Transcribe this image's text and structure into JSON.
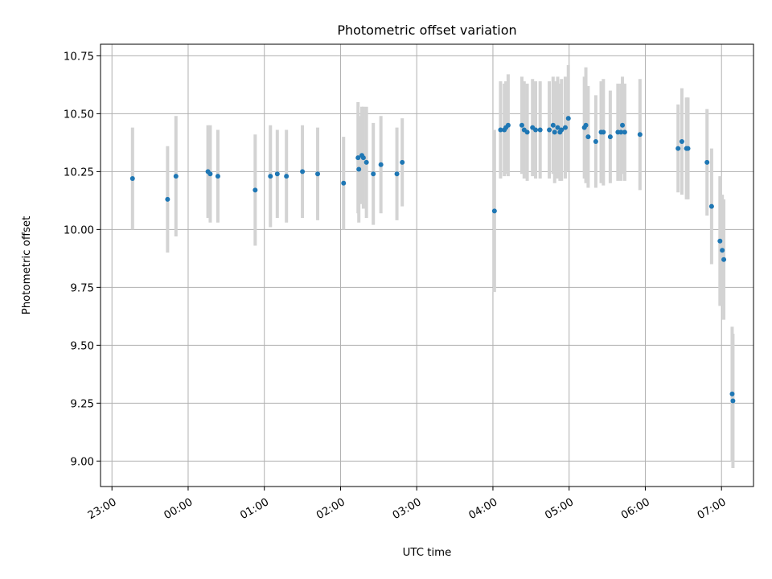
{
  "chart_data": {
    "type": "scatter",
    "title": "Photometric offset variation",
    "xlabel": "UTC time",
    "ylabel": "Photometric offset",
    "xlim": [
      -0.15,
      8.42
    ],
    "ylim": [
      8.89,
      10.8
    ],
    "x_ticks": [
      {
        "value": 0,
        "label": "23:00"
      },
      {
        "value": 1,
        "label": "00:00"
      },
      {
        "value": 2,
        "label": "01:00"
      },
      {
        "value": 3,
        "label": "02:00"
      },
      {
        "value": 4,
        "label": "03:00"
      },
      {
        "value": 5,
        "label": "04:00"
      },
      {
        "value": 6,
        "label": "05:00"
      },
      {
        "value": 7,
        "label": "06:00"
      },
      {
        "value": 8,
        "label": "07:00"
      }
    ],
    "y_ticks": [
      9.0,
      9.25,
      9.5,
      9.75,
      10.0,
      10.25,
      10.5,
      10.75
    ],
    "y_tick_labels": [
      "9.00",
      "9.25",
      "9.50",
      "9.75",
      "10.00",
      "10.25",
      "10.50",
      "10.75"
    ],
    "grid": true,
    "colors": {
      "point": "#1f77b4",
      "errorbar": "#d3d3d3",
      "grid": "#b0b0b0"
    },
    "series": [
      {
        "x": [
          0.27,
          0.73,
          0.84,
          1.26,
          1.29,
          1.39,
          1.88,
          2.08,
          2.17,
          2.29,
          2.5,
          2.7,
          3.04,
          3.23,
          3.24,
          3.28,
          3.3,
          3.34,
          3.43,
          3.53,
          3.74,
          3.81,
          5.02,
          5.1,
          5.15,
          5.17,
          5.2,
          5.38,
          5.41,
          5.45,
          5.52,
          5.56,
          5.62,
          5.74,
          5.79,
          5.81,
          5.85,
          5.88,
          5.9,
          5.95,
          5.99,
          6.2,
          6.22,
          6.25,
          6.35,
          6.42,
          6.45,
          6.54,
          6.64,
          6.68,
          6.7,
          6.73,
          6.93,
          7.43,
          7.48,
          7.54,
          7.56,
          7.81,
          7.87,
          7.98,
          8.01,
          8.03,
          8.14,
          8.15
        ],
        "y": [
          10.22,
          10.13,
          10.23,
          10.25,
          10.24,
          10.23,
          10.17,
          10.23,
          10.24,
          10.23,
          10.25,
          10.24,
          10.2,
          10.31,
          10.26,
          10.32,
          10.31,
          10.29,
          10.24,
          10.28,
          10.24,
          10.29,
          10.08,
          10.43,
          10.43,
          10.44,
          10.45,
          10.45,
          10.43,
          10.42,
          10.44,
          10.43,
          10.43,
          10.43,
          10.45,
          10.42,
          10.44,
          10.42,
          10.43,
          10.44,
          10.48,
          10.44,
          10.45,
          10.4,
          10.38,
          10.42,
          10.42,
          10.4,
          10.42,
          10.42,
          10.45,
          10.42,
          10.41,
          10.35,
          10.38,
          10.35,
          10.35,
          10.29,
          10.1,
          9.95,
          9.91,
          9.87,
          9.29,
          9.26
        ],
        "yerr": [
          0.22,
          0.23,
          0.26,
          0.2,
          0.21,
          0.2,
          0.24,
          0.22,
          0.19,
          0.2,
          0.2,
          0.2,
          0.2,
          0.24,
          0.23,
          0.21,
          0.22,
          0.24,
          0.22,
          0.21,
          0.2,
          0.19,
          0.35,
          0.21,
          0.2,
          0.2,
          0.22,
          0.21,
          0.21,
          0.21,
          0.21,
          0.21,
          0.21,
          0.21,
          0.21,
          0.22,
          0.22,
          0.21,
          0.22,
          0.22,
          0.23,
          0.22,
          0.25,
          0.22,
          0.2,
          0.22,
          0.23,
          0.2,
          0.21,
          0.21,
          0.21,
          0.21,
          0.24,
          0.19,
          0.23,
          0.22,
          0.22,
          0.23,
          0.25,
          0.28,
          0.24,
          0.26,
          0.29,
          0.29
        ]
      }
    ]
  }
}
